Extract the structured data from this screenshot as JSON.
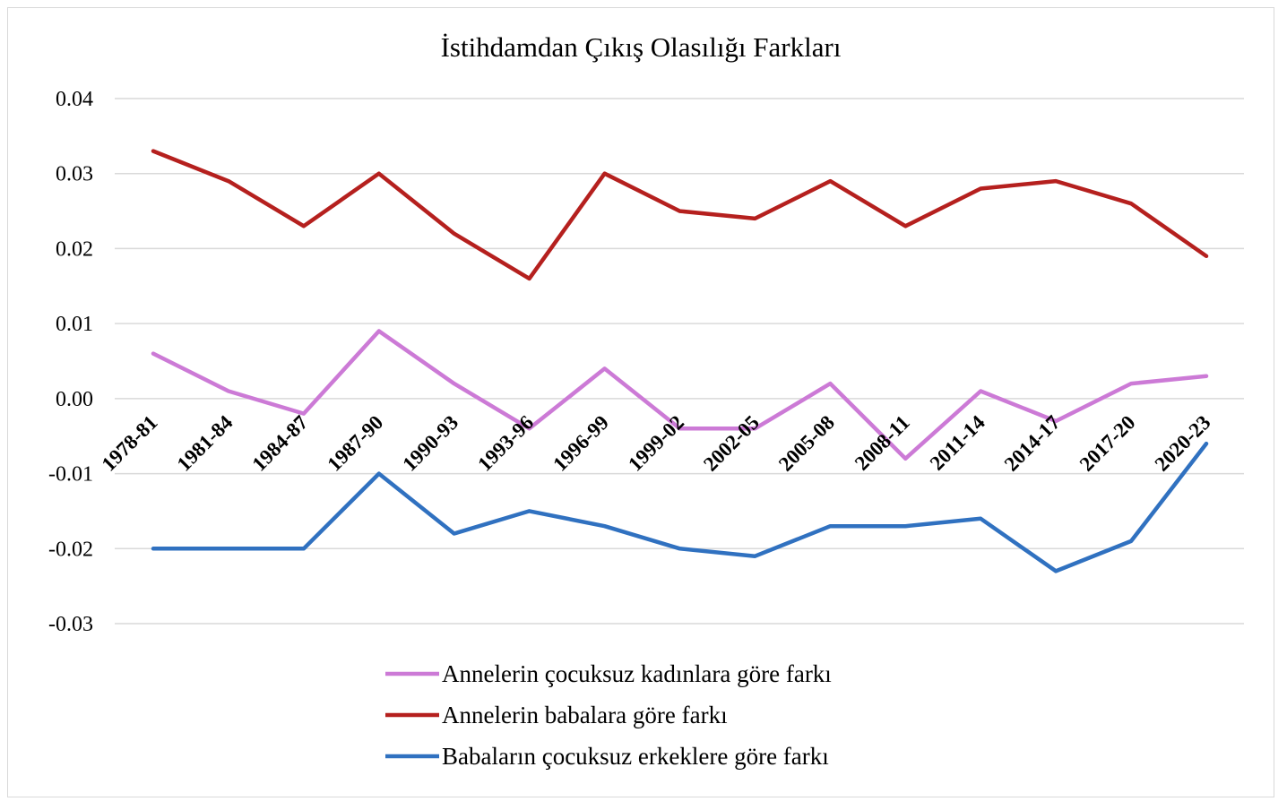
{
  "chart_data": {
    "type": "line",
    "title": "İstihdamdan Çıkış Olasılığı Farkları",
    "xlabel": "",
    "ylabel": "",
    "categories": [
      "1978-81",
      "1981-84",
      "1984-87",
      "1987-90",
      "1990-93",
      "1993-96",
      "1996-99",
      "1999-02",
      "2002-05",
      "2005-08",
      "2008-11",
      "2011-14",
      "2014-17",
      "2017-20",
      "2020-23"
    ],
    "ylim": [
      -0.03,
      0.04
    ],
    "yticks": [
      0.04,
      0.03,
      0.02,
      0.01,
      0.0,
      -0.01,
      -0.02,
      -0.03
    ],
    "ytick_labels": [
      "0.04",
      "0.03",
      "0.02",
      "0.01",
      "0.00",
      "-0.01",
      "-0.02",
      "-0.03"
    ],
    "grid": true,
    "legend_position": "bottom",
    "series": [
      {
        "name": "Annelerin çocuksuz kadınlara göre farkı",
        "color": "#cc7ad6",
        "values": [
          0.006,
          0.001,
          -0.002,
          0.009,
          0.002,
          -0.004,
          0.004,
          -0.004,
          -0.004,
          0.002,
          -0.008,
          0.001,
          -0.003,
          0.002,
          0.003
        ]
      },
      {
        "name": "Annelerin babalara göre farkı",
        "color": "#b5201e",
        "values": [
          0.033,
          0.029,
          0.023,
          0.03,
          0.022,
          0.016,
          0.03,
          0.025,
          0.024,
          0.029,
          0.023,
          0.028,
          0.029,
          0.026,
          0.019
        ]
      },
      {
        "name": "Babaların çocuksuz erkeklere göre farkı",
        "color": "#3071c0",
        "values": [
          -0.02,
          -0.02,
          -0.02,
          -0.01,
          -0.018,
          -0.015,
          -0.017,
          -0.02,
          -0.021,
          -0.017,
          -0.017,
          -0.016,
          -0.023,
          -0.019,
          -0.006
        ]
      }
    ]
  }
}
